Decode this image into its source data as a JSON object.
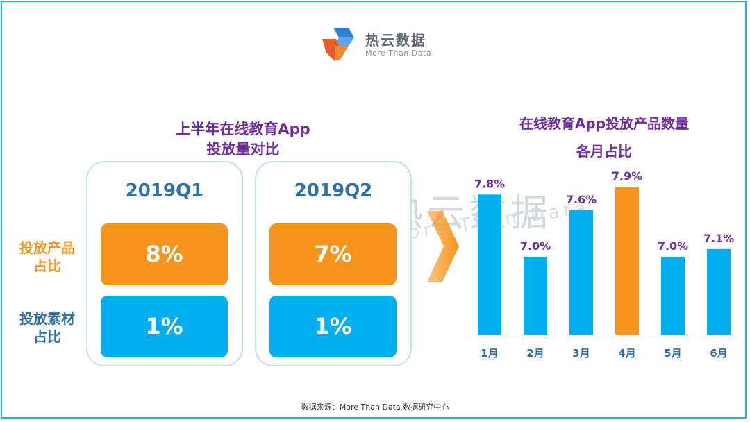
{
  "logo": {
    "name": "热云数据",
    "tagline": "More Than Data"
  },
  "left_panel": {
    "title_line1": "上半年在线教育App",
    "title_line2": "投放量对比",
    "row_labels": {
      "product_line1": "投放产品",
      "product_line2": "占比",
      "material_line1": "投放素材",
      "material_line2": "占比"
    },
    "quarters": [
      {
        "name": "2019Q1",
        "product_share": "8%",
        "material_share": "1%"
      },
      {
        "name": "2019Q2",
        "product_share": "7%",
        "material_share": "1%"
      }
    ]
  },
  "right_panel": {
    "title_line1": "在线教育App投放产品数量",
    "title_line2": "各月占比"
  },
  "chart_data": {
    "type": "bar",
    "title": "在线教育App投放产品数量各月占比",
    "categories": [
      "1月",
      "2月",
      "3月",
      "4月",
      "5月",
      "6月"
    ],
    "values": [
      7.8,
      7.0,
      7.6,
      7.9,
      7.0,
      7.1
    ],
    "labels": [
      "7.8%",
      "7.0%",
      "7.6%",
      "7.9%",
      "7.0%",
      "7.1%"
    ],
    "ylim": [
      6.0,
      8.0
    ],
    "highlight_index": 3,
    "colors": {
      "default": "#00aeef",
      "highlight": "#f7941d"
    },
    "grid": false
  },
  "watermark": {
    "text": "热云数据",
    "sub": "More Than Data"
  },
  "source": "数据来源：More Than Data 数据研究中心"
}
